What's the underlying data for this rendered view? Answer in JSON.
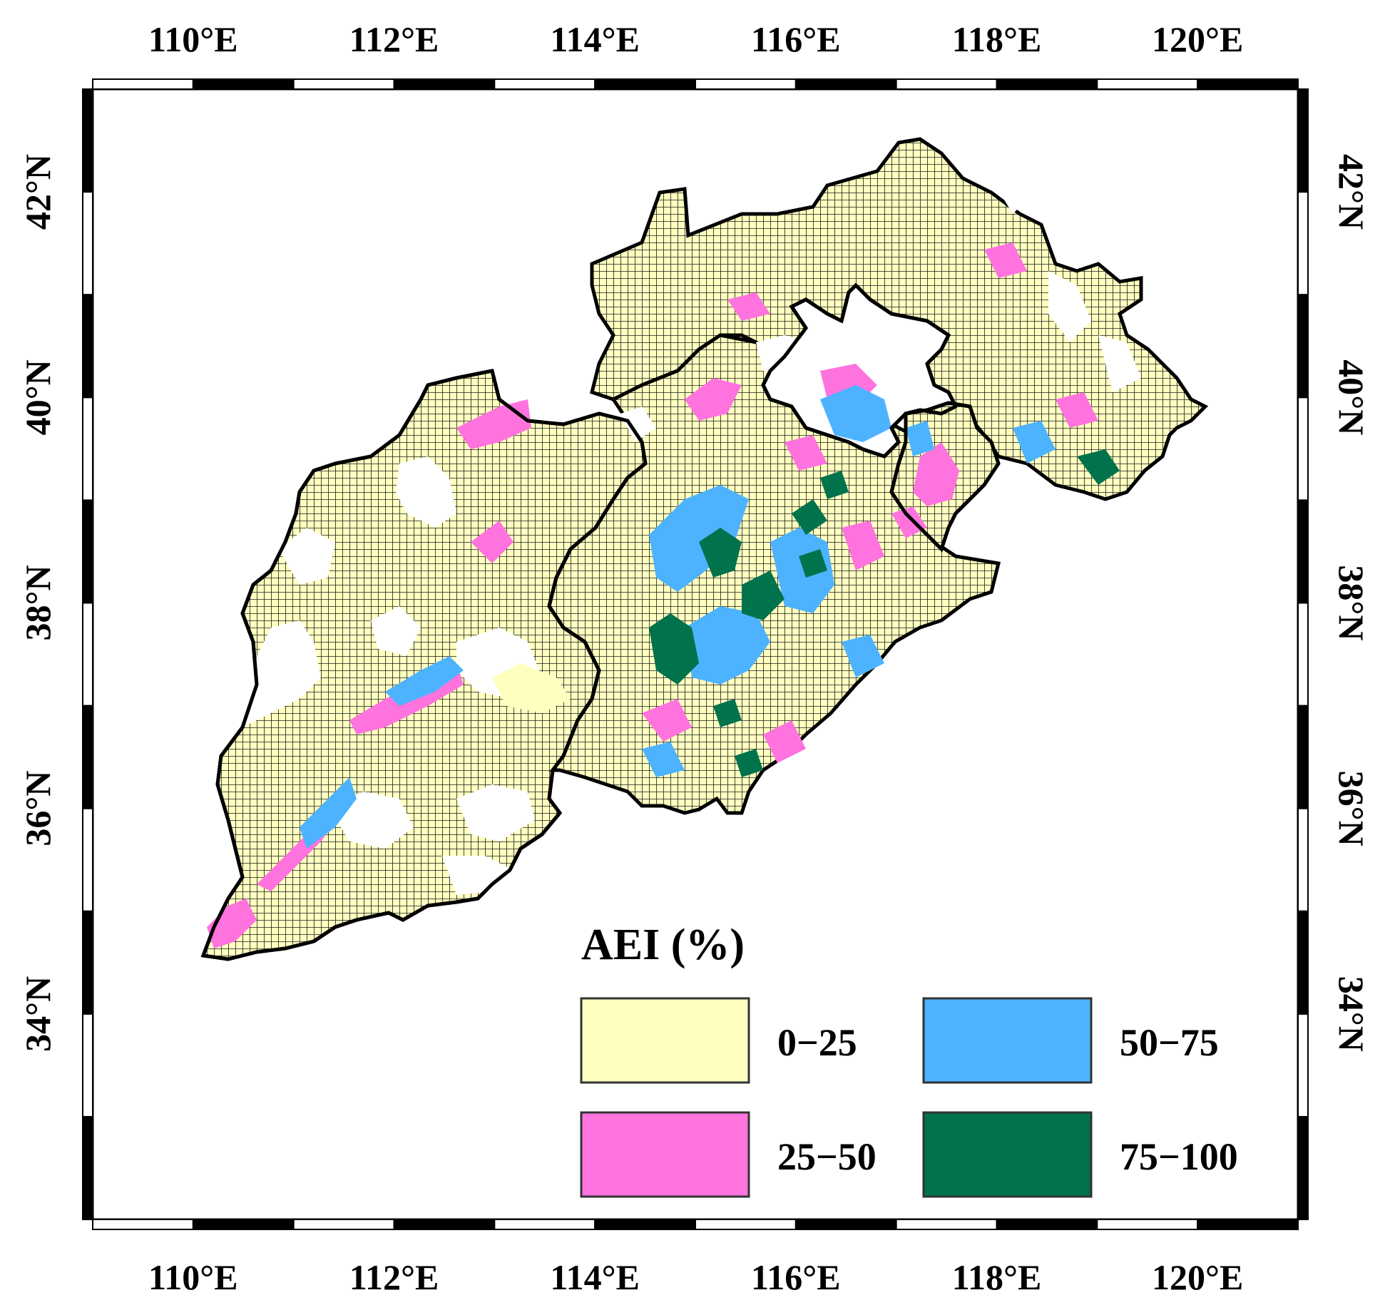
{
  "map": {
    "lon_labels": [
      "110°E",
      "112°E",
      "114°E",
      "116°E",
      "118°E",
      "120°E"
    ],
    "lat_labels": [
      "34°N",
      "36°N",
      "38°N",
      "40°N",
      "42°N"
    ],
    "lon_range": [
      109.0,
      121.0
    ],
    "lat_range": [
      32.0,
      43.0
    ],
    "grid_lines": false
  },
  "legend": {
    "title": "AEI (%)",
    "placement": "bottom-right",
    "classes": [
      {
        "label": "0−25",
        "color": "#ffffc0"
      },
      {
        "label": "25−50",
        "color": "#ff73df"
      },
      {
        "label": "50−75",
        "color": "#4db3ff"
      },
      {
        "label": "75−100",
        "color": "#00734c"
      }
    ]
  },
  "colors": {
    "frame": "#000000",
    "boundary": "#000000",
    "grid_cell_outline": "#1a1a1a",
    "background": "#ffffff"
  }
}
